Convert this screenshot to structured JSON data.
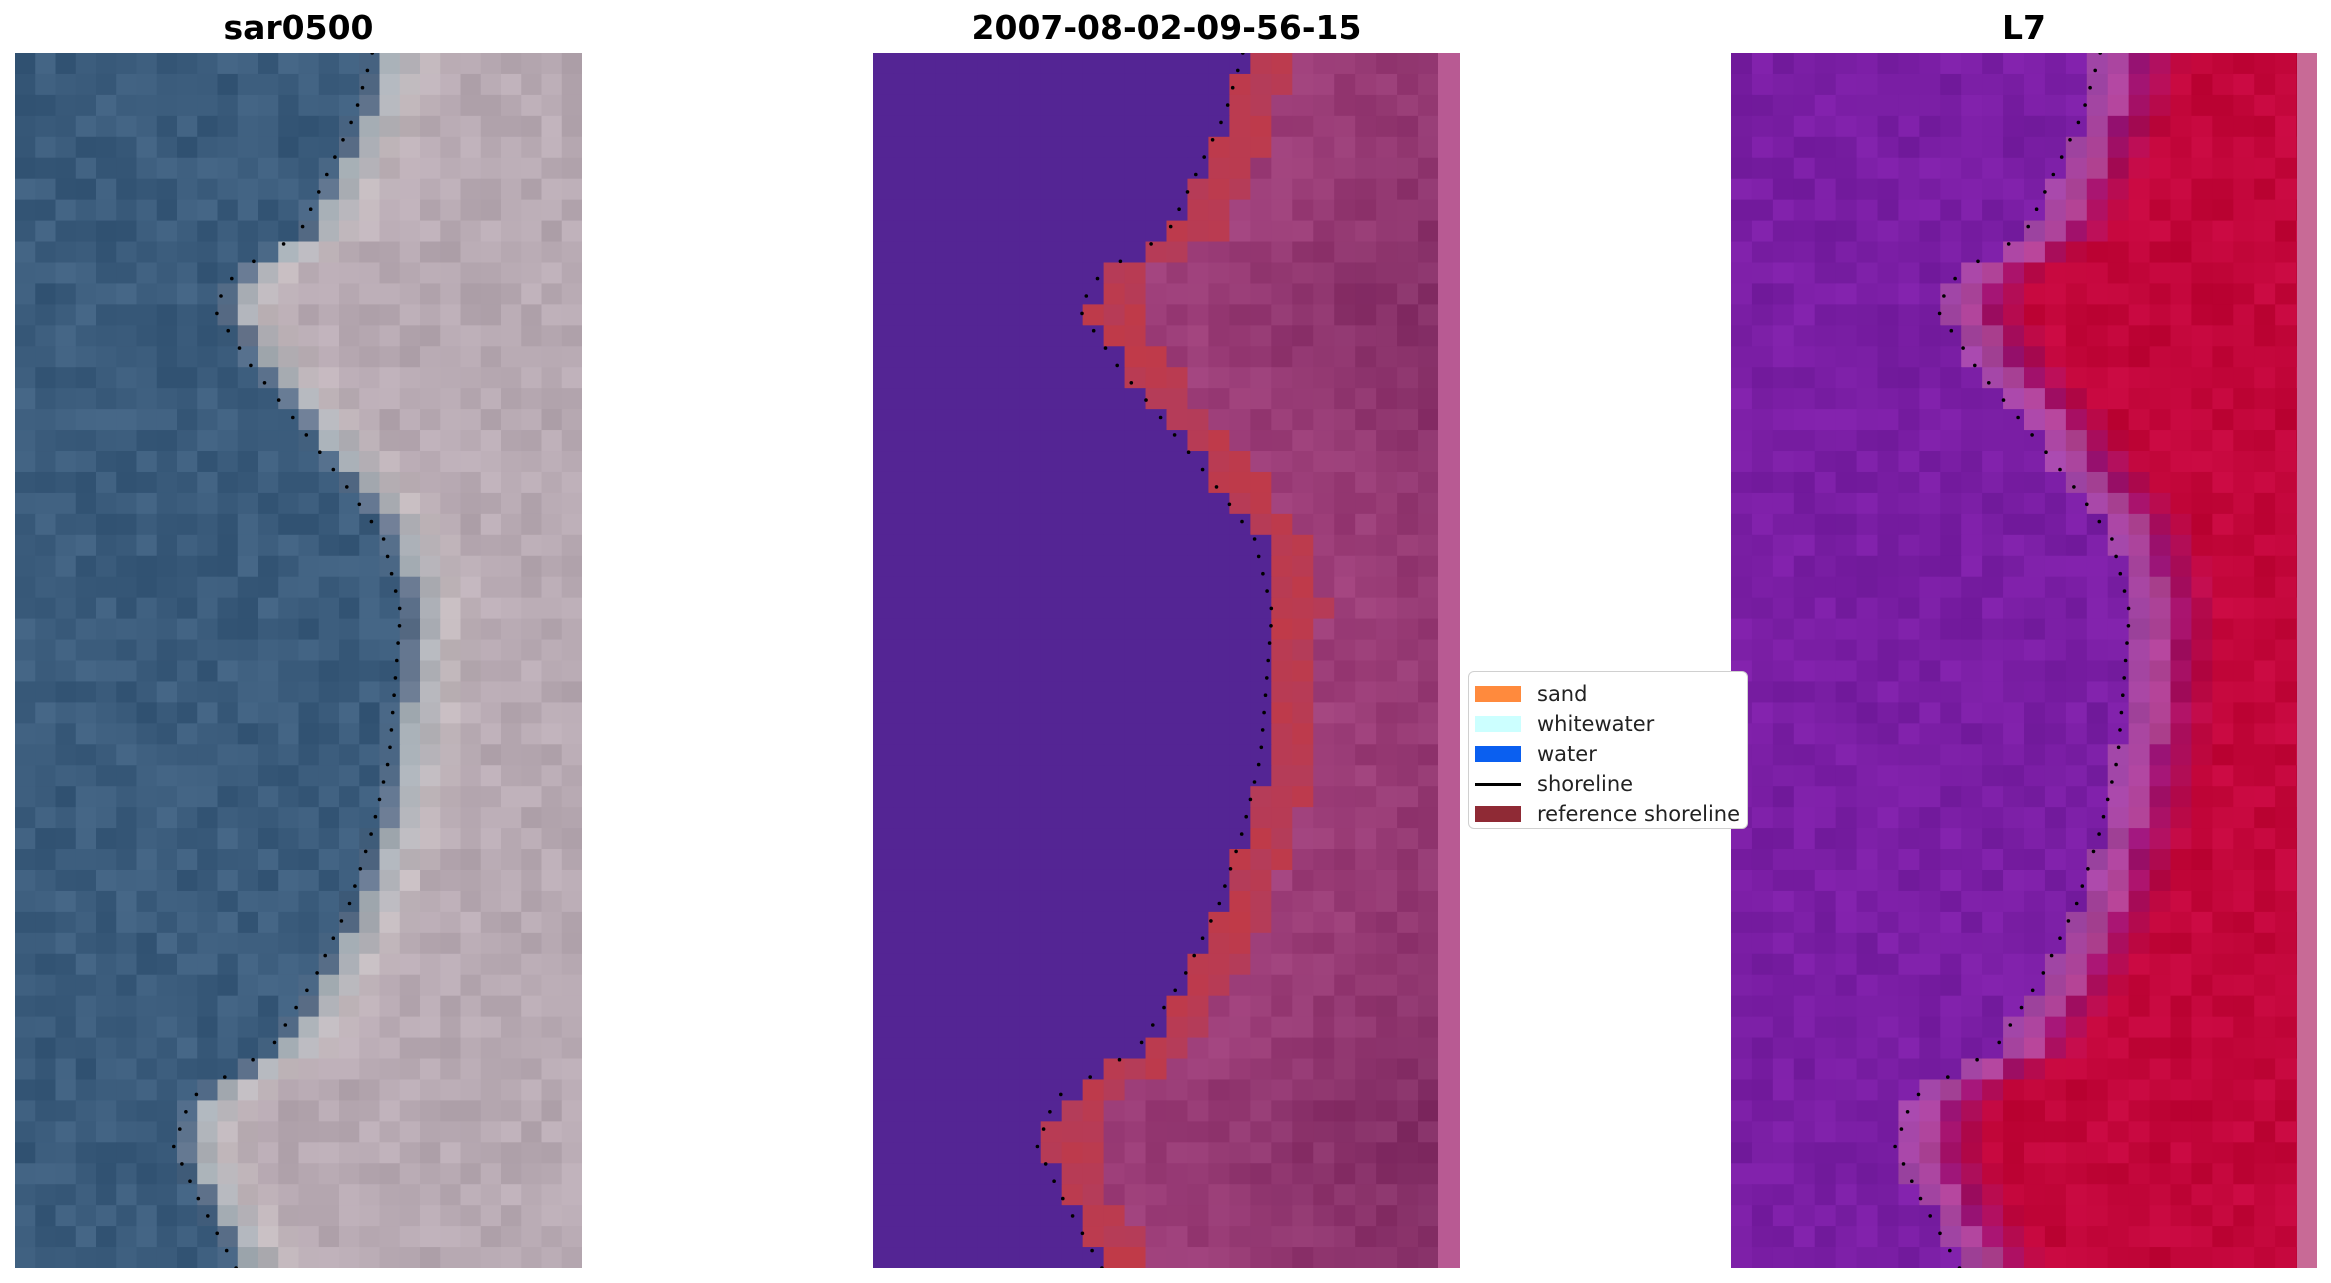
{
  "panels": [
    {
      "title": "sar0500"
    },
    {
      "title": "2007-08-02-09-56-15"
    },
    {
      "title": "L7"
    }
  ],
  "legend": {
    "items": [
      {
        "label": "sand",
        "color": "#ff8a3d"
      },
      {
        "label": "whitewater",
        "color": "#ccffff"
      },
      {
        "label": "water",
        "color": "#0a5ff0"
      },
      {
        "label": "shoreline",
        "color": "#000000"
      },
      {
        "label": "reference shoreline",
        "color": "#8f2a35"
      }
    ]
  },
  "colors": {
    "rgb_water": "#3b5c7c",
    "rgb_land": "#b7a9b2",
    "class_water": "#542594",
    "class_land": "#9e3f7a",
    "class_overlay": "#c03a48",
    "index_water": "#7a1ea4",
    "index_land": "#c2063a"
  }
}
